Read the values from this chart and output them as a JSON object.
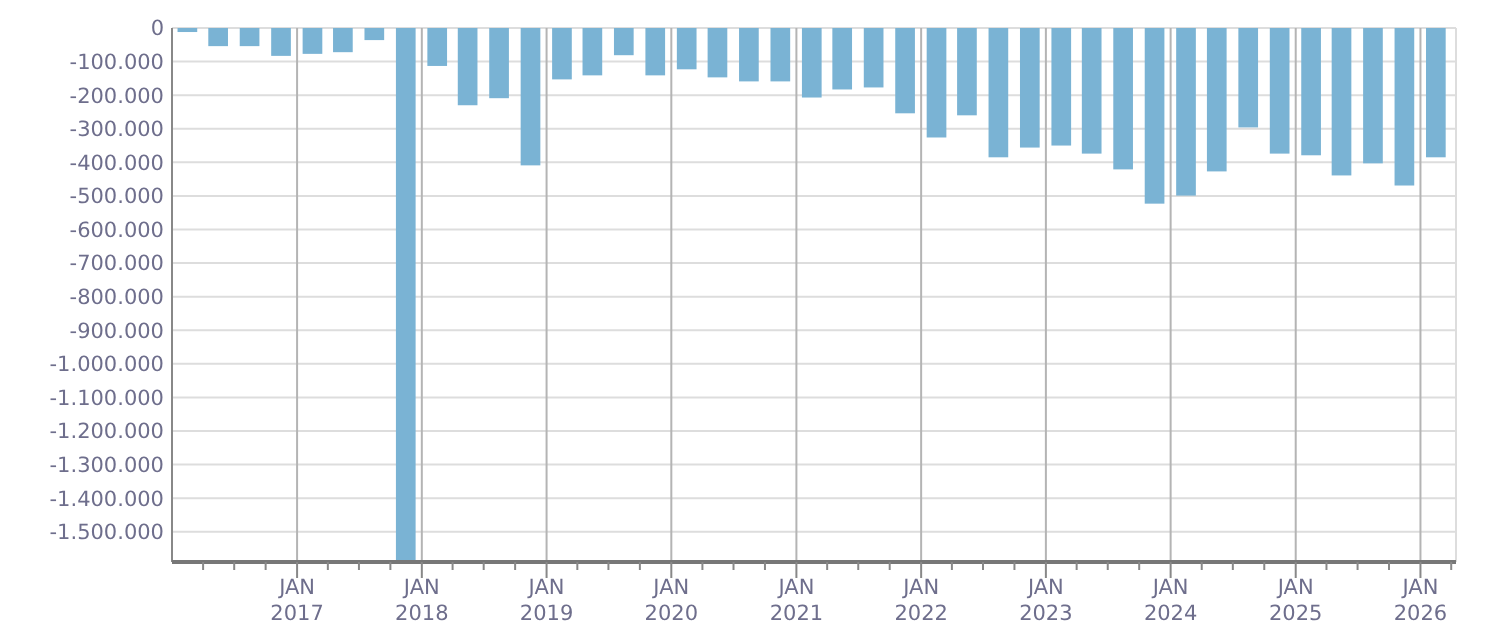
{
  "chart_data": {
    "type": "bar",
    "x": [
      "2016-02-15",
      "2016-05-15",
      "2016-08-15",
      "2016-11-15",
      "2017-02-15",
      "2017-05-15",
      "2017-08-15",
      "2017-11-15",
      "2018-02-15",
      "2018-05-15",
      "2018-08-15",
      "2018-11-15",
      "2019-02-15",
      "2019-05-15",
      "2019-08-15",
      "2019-11-15",
      "2020-02-15",
      "2020-05-15",
      "2020-08-15",
      "2020-11-15",
      "2021-02-15",
      "2021-05-15",
      "2021-08-15",
      "2021-11-15",
      "2022-02-15",
      "2022-05-15",
      "2022-08-15",
      "2022-11-15",
      "2023-02-15",
      "2023-05-15",
      "2023-08-15",
      "2023-11-15",
      "2024-02-15",
      "2024-05-15",
      "2024-08-15",
      "2024-11-15",
      "2025-02-15",
      "2025-05-15",
      "2025-08-15",
      "2025-11-15",
      "2026-02-15"
    ],
    "values": [
      -12000,
      -54000,
      -54000,
      -83000,
      -77000,
      -72000,
      -36000,
      -1590000,
      -113000,
      -230000,
      -209000,
      -409000,
      -153000,
      -141000,
      -81000,
      -141000,
      -123000,
      -147000,
      -159000,
      -159000,
      -207000,
      -183000,
      -177000,
      -254000,
      -326000,
      -260000,
      -385000,
      -356000,
      -350000,
      -374000,
      -421000,
      -523000,
      -499000,
      -427000,
      -296000,
      -374000,
      -379000,
      -439000,
      -403000,
      -469000,
      -385000
    ],
    "color": "#7ab3d4",
    "xlim": [
      "2016-01-01",
      "2026-04-15"
    ],
    "xticks": [
      {
        "value": "2016-04",
        "label": null
      },
      {
        "value": "2016-07",
        "label": null
      },
      {
        "value": "2016-10",
        "label": null
      },
      {
        "value": "2017-01",
        "label": "JAN 2017"
      },
      {
        "value": "2017-04",
        "label": null
      },
      {
        "value": "2017-07",
        "label": null
      },
      {
        "value": "2017-10",
        "label": null
      },
      {
        "value": "2018-01",
        "label": "JAN 2018"
      },
      {
        "value": "2018-04",
        "label": null
      },
      {
        "value": "2018-07",
        "label": null
      },
      {
        "value": "2018-10",
        "label": null
      },
      {
        "value": "2019-01",
        "label": "JAN 2019"
      },
      {
        "value": "2019-04",
        "label": null
      },
      {
        "value": "2019-07",
        "label": null
      },
      {
        "value": "2019-10",
        "label": null
      },
      {
        "value": "2020-01",
        "label": "JAN 2020"
      },
      {
        "value": "2020-04",
        "label": null
      },
      {
        "value": "2020-07",
        "label": null
      },
      {
        "value": "2020-10",
        "label": null
      },
      {
        "value": "2021-01",
        "label": "JAN 2021"
      },
      {
        "value": "2021-04",
        "label": null
      },
      {
        "value": "2021-07",
        "label": null
      },
      {
        "value": "2021-10",
        "label": null
      },
      {
        "value": "2022-01",
        "label": "JAN 2022"
      },
      {
        "value": "2022-04",
        "label": null
      },
      {
        "value": "2022-07",
        "label": null
      },
      {
        "value": "2022-10",
        "label": null
      },
      {
        "value": "2023-01",
        "label": "JAN 2023"
      },
      {
        "value": "2023-04",
        "label": null
      },
      {
        "value": "2023-07",
        "label": null
      },
      {
        "value": "2023-10",
        "label": null
      },
      {
        "value": "2024-01",
        "label": "JAN 2024"
      },
      {
        "value": "2024-04",
        "label": null
      },
      {
        "value": "2024-07",
        "label": null
      },
      {
        "value": "2024-10",
        "label": null
      },
      {
        "value": "2025-01",
        "label": "JAN 2025"
      },
      {
        "value": "2025-04",
        "label": null
      },
      {
        "value": "2025-07",
        "label": null
      },
      {
        "value": "2025-10",
        "label": null
      },
      {
        "value": "2026-01",
        "label": "JAN 2026"
      },
      {
        "value": "2026-04",
        "label": null
      }
    ],
    "ylim": [
      -1590000,
      0
    ],
    "yticks": [
      0,
      {
        "value": -100000,
        "label": "-100.000"
      },
      {
        "value": -200000,
        "label": "-200.000"
      },
      {
        "value": -300000,
        "label": "-300.000"
      },
      {
        "value": -400000,
        "label": "-400.000"
      },
      {
        "value": -500000,
        "label": "-500.000"
      },
      {
        "value": -600000,
        "label": "-600.000"
      },
      {
        "value": -700000,
        "label": "-700.000"
      },
      {
        "value": -800000,
        "label": "-800.000"
      },
      {
        "value": -900000,
        "label": "-900.000"
      },
      {
        "value": -1000000,
        "label": "-1.000.000"
      },
      {
        "value": -1100000,
        "label": "-1.100.000"
      },
      {
        "value": -1200000,
        "label": "-1.200.000"
      },
      {
        "value": -1300000,
        "label": "-1.300.000"
      },
      {
        "value": -1400000,
        "label": "-1.400.000"
      },
      {
        "value": -1500000,
        "label": "-1.500.000"
      }
    ],
    "grid": true
  }
}
